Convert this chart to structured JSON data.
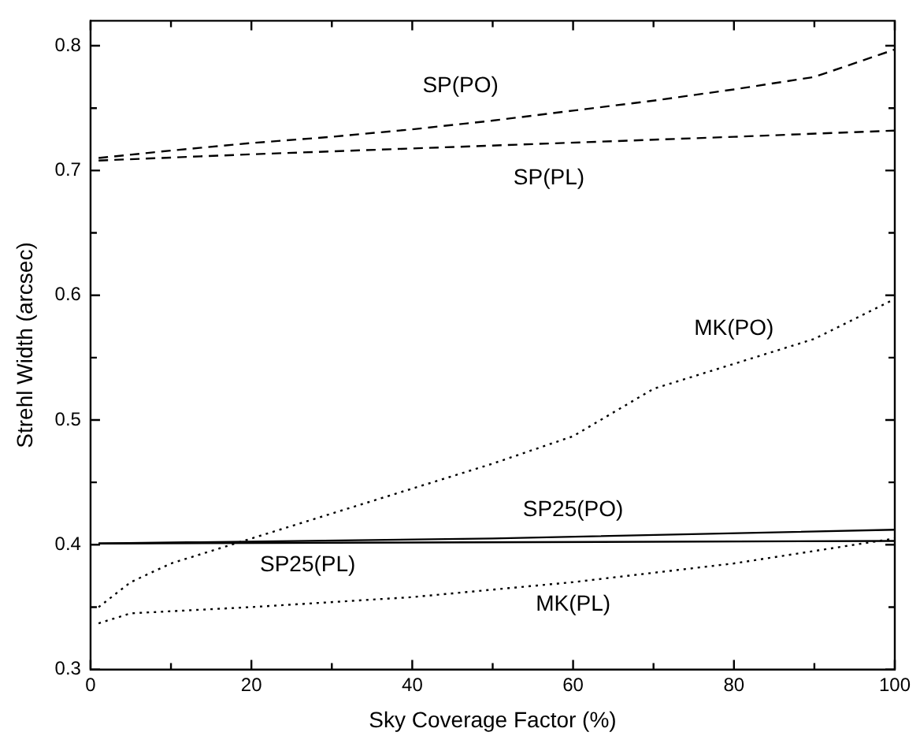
{
  "chart_data": {
    "type": "line",
    "xlabel": "Sky Coverage Factor (%)",
    "ylabel": "Strehl Width (arcsec)",
    "xlim": [
      0,
      100
    ],
    "xticks": [
      0,
      {
        "value": 10,
        "label": null
      },
      20,
      {
        "value": 30,
        "label": null
      },
      40,
      {
        "value": 50,
        "label": null
      },
      60,
      {
        "value": 70,
        "label": null
      },
      80,
      {
        "value": 90,
        "label": null
      },
      100
    ],
    "ylim": [
      0.3,
      0.82
    ],
    "yticks": [
      0.3,
      {
        "value": 0.35,
        "label": null
      },
      0.4,
      {
        "value": 0.45,
        "label": null
      },
      0.5,
      {
        "value": 0.55,
        "label": null
      },
      0.6,
      {
        "value": 0.65,
        "label": null
      },
      0.7,
      {
        "value": 0.75,
        "label": null
      },
      0.8
    ],
    "grid": false,
    "legend": false,
    "marker": "none",
    "series": [
      {
        "name": "SP(PO)",
        "color": "#000000",
        "line_style": "dashed",
        "x": [
          1,
          10,
          20,
          30,
          40,
          50,
          60,
          70,
          80,
          90,
          100
        ],
        "values": [
          0.71,
          0.716,
          0.722,
          0.727,
          0.733,
          0.74,
          0.748,
          0.756,
          0.765,
          0.775,
          0.797
        ]
      },
      {
        "name": "SP(PL)",
        "color": "#000000",
        "line_style": "dashed",
        "x": [
          1,
          20,
          50,
          80,
          100
        ],
        "values": [
          0.708,
          0.713,
          0.72,
          0.727,
          0.732
        ]
      },
      {
        "name": "MK(PO)",
        "color": "#000000",
        "line_style": "dotted",
        "x": [
          1,
          5,
          10,
          20,
          30,
          40,
          50,
          60,
          70,
          80,
          90,
          100
        ],
        "values": [
          0.35,
          0.37,
          0.385,
          0.405,
          0.425,
          0.445,
          0.465,
          0.487,
          0.525,
          0.545,
          0.565,
          0.597
        ]
      },
      {
        "name": "SP25(PO)",
        "color": "#000000",
        "line_style": "solid",
        "x": [
          1,
          50,
          100
        ],
        "values": [
          0.401,
          0.405,
          0.412
        ]
      },
      {
        "name": "SP25(PL)",
        "color": "#000000",
        "line_style": "solid",
        "x": [
          1,
          100
        ],
        "values": [
          0.401,
          0.403
        ]
      },
      {
        "name": "MK(PL)",
        "color": "#000000",
        "line_style": "dotted",
        "x": [
          1,
          5,
          20,
          40,
          60,
          80,
          90,
          100
        ],
        "values": [
          0.337,
          0.345,
          0.35,
          0.358,
          0.37,
          0.385,
          0.395,
          0.405
        ]
      }
    ]
  }
}
